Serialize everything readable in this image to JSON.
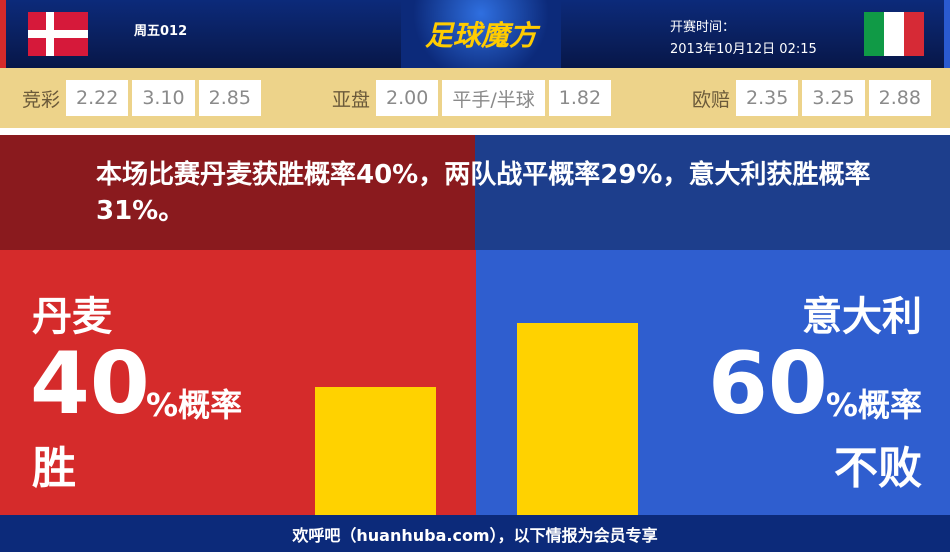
{
  "header": {
    "match_no": "周五012",
    "logo": "足球魔方",
    "kickoff_label": "开赛时间：",
    "kickoff_time": "2013年10月12日 02:15"
  },
  "odds": {
    "jingcai": {
      "label": "竞彩",
      "values": [
        "2.22",
        "3.10",
        "2.85"
      ]
    },
    "asian": {
      "label": "亚盘",
      "values": [
        "2.00",
        "平手/半球",
        "1.82"
      ]
    },
    "euro": {
      "label": "欧赔",
      "values": [
        "2.35",
        "3.25",
        "2.88"
      ]
    }
  },
  "summary": "本场比赛丹麦获胜概率40%，两队战平概率29%，意大利获胜概率31%。",
  "home": {
    "team": "丹麦",
    "percent": "40",
    "unit": "%概率",
    "outcome": "胜",
    "bar_value": 40,
    "color": "#d52b2b"
  },
  "away": {
    "team": "意大利",
    "percent": "60",
    "unit": "%概率",
    "outcome": "不败",
    "bar_value": 60,
    "color": "#2f5ecf"
  },
  "bar_color": "#ffd200",
  "footer": "欢呼吧（huanhuba.com），以下情报为会员专享"
}
